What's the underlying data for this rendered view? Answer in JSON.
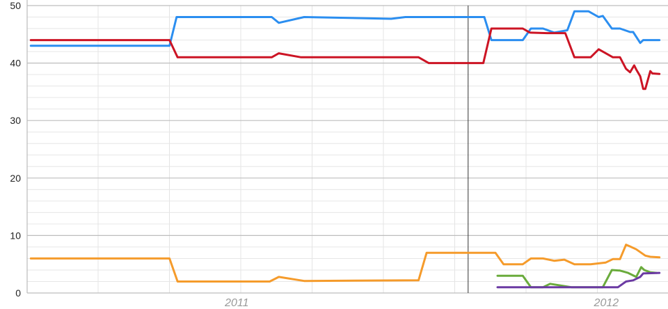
{
  "chart_data": {
    "type": "line",
    "title": "",
    "xlabel": "",
    "ylabel": "",
    "ylim": [
      0,
      50
    ],
    "xlim": [
      "2010-06-01",
      "2012-02-22"
    ],
    "y_ticks": [
      "0",
      "10",
      "20",
      "30",
      "40",
      "50"
    ],
    "y_minor_step": 2,
    "x_ticks": [
      {
        "label": "2011",
        "date": "2011-01-01"
      },
      {
        "label": "2012",
        "date": "2012-01-01"
      }
    ],
    "grid": true,
    "marker_line_date": "2011-08-12",
    "legend": "none",
    "series": [
      {
        "color": "#2b8ef0",
        "points": [
          [
            "2010-06-06",
            43
          ],
          [
            "2010-10-21",
            43
          ],
          [
            "2010-10-28",
            48
          ],
          [
            "2011-01-30",
            48
          ],
          [
            "2011-02-06",
            47
          ],
          [
            "2011-03-03",
            48
          ],
          [
            "2011-05-28",
            47.7
          ],
          [
            "2011-06-11",
            48
          ],
          [
            "2011-08-28",
            48
          ],
          [
            "2011-09-04",
            44
          ],
          [
            "2011-10-05",
            44
          ],
          [
            "2011-10-13",
            46
          ],
          [
            "2011-10-25",
            46
          ],
          [
            "2011-11-05",
            45.3
          ],
          [
            "2011-11-18",
            45.7
          ],
          [
            "2011-11-25",
            49
          ],
          [
            "2011-12-09",
            49
          ],
          [
            "2011-12-19",
            48
          ],
          [
            "2011-12-23",
            48.2
          ],
          [
            "2012-01-01",
            46
          ],
          [
            "2012-01-09",
            46
          ],
          [
            "2012-01-19",
            45.4
          ],
          [
            "2012-01-22",
            45.4
          ],
          [
            "2012-01-29",
            43.5
          ],
          [
            "2012-02-01",
            44
          ],
          [
            "2012-02-08",
            44
          ],
          [
            "2012-02-17",
            44
          ]
        ]
      },
      {
        "color": "#cc1424",
        "points": [
          [
            "2010-06-06",
            44
          ],
          [
            "2010-10-21",
            44
          ],
          [
            "2010-10-29",
            41
          ],
          [
            "2011-01-30",
            41
          ],
          [
            "2011-02-06",
            41.7
          ],
          [
            "2011-02-28",
            41
          ],
          [
            "2011-06-24",
            41
          ],
          [
            "2011-07-04",
            40
          ],
          [
            "2011-08-27",
            40
          ],
          [
            "2011-09-04",
            46
          ],
          [
            "2011-10-05",
            46
          ],
          [
            "2011-10-12",
            45.3
          ],
          [
            "2011-10-29",
            45.2
          ],
          [
            "2011-11-16",
            45.2
          ],
          [
            "2011-11-25",
            41
          ],
          [
            "2011-12-11",
            41
          ],
          [
            "2011-12-19",
            42.4
          ],
          [
            "2012-01-02",
            41
          ],
          [
            "2012-01-09",
            41
          ],
          [
            "2012-01-15",
            39
          ],
          [
            "2012-01-19",
            38.4
          ],
          [
            "2012-01-23",
            39.6
          ],
          [
            "2012-01-25",
            38.9
          ],
          [
            "2012-01-29",
            37.7
          ],
          [
            "2012-02-01",
            35.5
          ],
          [
            "2012-02-03",
            35.5
          ],
          [
            "2012-02-08",
            38.6
          ],
          [
            "2012-02-10",
            38.2
          ],
          [
            "2012-02-17",
            38.1
          ]
        ]
      },
      {
        "color": "#f59b2b",
        "points": [
          [
            "2010-06-06",
            6
          ],
          [
            "2010-10-21",
            6
          ],
          [
            "2010-10-29",
            2
          ],
          [
            "2011-01-28",
            2
          ],
          [
            "2011-02-06",
            2.8
          ],
          [
            "2011-03-03",
            2.1
          ],
          [
            "2011-06-24",
            2.2
          ],
          [
            "2011-07-02",
            7
          ],
          [
            "2011-09-08",
            7
          ],
          [
            "2011-09-16",
            5
          ],
          [
            "2011-10-05",
            5
          ],
          [
            "2011-10-13",
            6
          ],
          [
            "2011-10-25",
            6
          ],
          [
            "2011-11-05",
            5.6
          ],
          [
            "2011-11-15",
            5.8
          ],
          [
            "2011-11-25",
            5
          ],
          [
            "2011-12-11",
            5
          ],
          [
            "2011-12-26",
            5.3
          ],
          [
            "2012-01-02",
            5.9
          ],
          [
            "2012-01-09",
            5.9
          ],
          [
            "2012-01-15",
            8.4
          ],
          [
            "2012-01-19",
            8.1
          ],
          [
            "2012-01-25",
            7.6
          ],
          [
            "2012-02-03",
            6.5
          ],
          [
            "2012-02-08",
            6.3
          ],
          [
            "2012-02-17",
            6.2
          ]
        ]
      },
      {
        "color": "#6aab3c",
        "points": [
          [
            "2011-09-10",
            3
          ],
          [
            "2011-10-05",
            3
          ],
          [
            "2011-10-13",
            1
          ],
          [
            "2011-10-25",
            1
          ],
          [
            "2011-11-01",
            1.6
          ],
          [
            "2011-11-22",
            1
          ],
          [
            "2011-12-23",
            1
          ],
          [
            "2012-01-01",
            4
          ],
          [
            "2012-01-09",
            3.9
          ],
          [
            "2012-01-17",
            3.5
          ],
          [
            "2012-01-25",
            2.8
          ],
          [
            "2012-01-30",
            4.5
          ],
          [
            "2012-02-02",
            4
          ],
          [
            "2012-02-08",
            3.6
          ],
          [
            "2012-02-14",
            3.5
          ]
        ]
      },
      {
        "color": "#6b3aa3",
        "points": [
          [
            "2011-09-10",
            1
          ],
          [
            "2012-01-07",
            1
          ],
          [
            "2012-01-15",
            2
          ],
          [
            "2012-01-22",
            2.2
          ],
          [
            "2012-01-29",
            2.8
          ],
          [
            "2012-02-01",
            3.4
          ],
          [
            "2012-02-17",
            3.5
          ]
        ]
      }
    ]
  }
}
